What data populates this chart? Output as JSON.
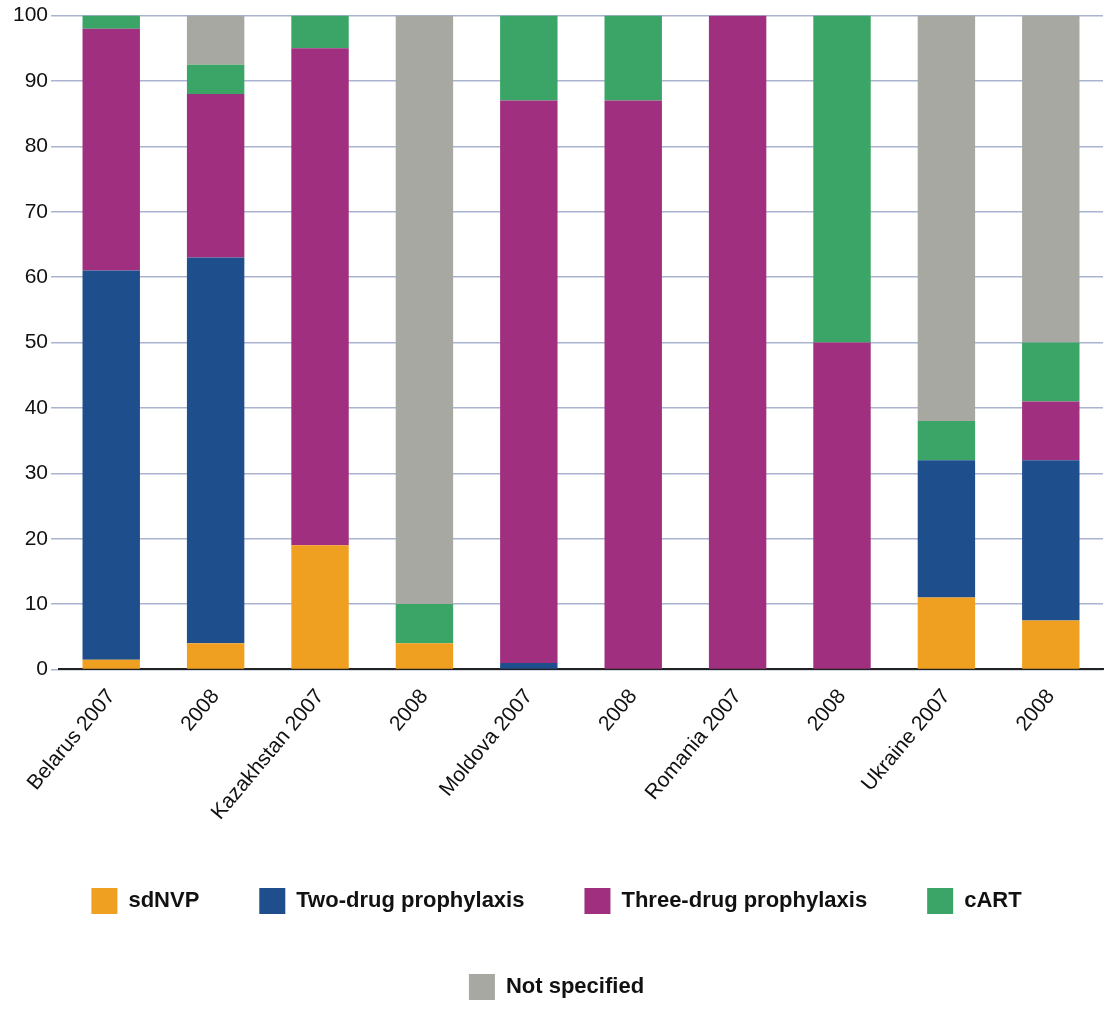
{
  "chart_data": {
    "type": "bar",
    "stacked": true,
    "categories": [
      "Belarus 2007",
      "2008",
      "Kazakhstan 2007",
      "2008",
      "Moldova 2007",
      "2008",
      "Romania 2007",
      "2008",
      "Ukraine 2007",
      "2008"
    ],
    "series": [
      {
        "name": "sdNVP",
        "color": "#f0a020",
        "values": [
          1.5,
          4,
          19,
          4,
          0,
          0,
          0,
          0,
          11,
          7.5
        ]
      },
      {
        "name": "Two-drug prophylaxis",
        "color": "#1f4e8c",
        "values": [
          59.5,
          59,
          0,
          0,
          1,
          0,
          0,
          0,
          21,
          24.5
        ]
      },
      {
        "name": "Three-drug prophylaxis",
        "color": "#a0307f",
        "values": [
          37,
          25,
          76,
          0,
          86,
          87,
          100,
          50,
          0,
          9
        ]
      },
      {
        "name": "cART",
        "color": "#3aa566",
        "values": [
          2,
          4.5,
          5,
          6,
          13,
          13,
          0,
          50,
          6,
          9
        ]
      },
      {
        "name": "Not specified",
        "color": "#a8a8a2",
        "values": [
          0,
          7.5,
          0,
          90,
          0,
          0,
          0,
          0,
          62,
          50
        ]
      }
    ],
    "ylim": [
      0,
      100
    ],
    "yticks": [
      0,
      10,
      20,
      30,
      40,
      50,
      60,
      70,
      80,
      90,
      100
    ],
    "grid": "y",
    "legend": "bottom"
  }
}
